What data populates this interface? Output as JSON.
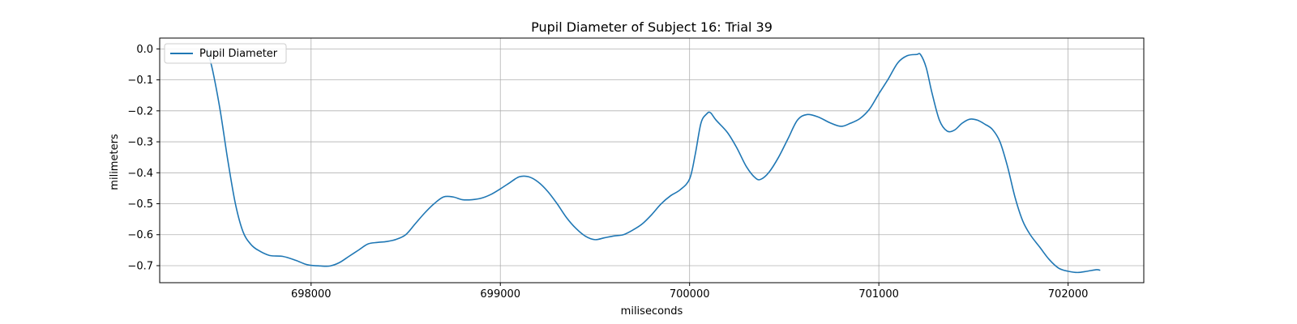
{
  "chart_data": {
    "type": "line",
    "title": "Pupil Diameter of Subject 16: Trial 39",
    "xlabel": "miliseconds",
    "ylabel": "milimeters",
    "xlim": [
      697200,
      702400
    ],
    "ylim": [
      -0.755,
      0.035
    ],
    "xticks": [
      698000,
      699000,
      700000,
      701000,
      702000
    ],
    "yticks": [
      0.0,
      -0.1,
      -0.2,
      -0.3,
      -0.4,
      -0.5,
      -0.6,
      -0.7
    ],
    "xtick_labels": [
      "698000",
      "699000",
      "700000",
      "701000",
      "702000"
    ],
    "ytick_labels": [
      "0.0",
      "−0.1",
      "−0.2",
      "−0.3",
      "−0.4",
      "−0.5",
      "−0.6",
      "−0.7"
    ],
    "grid": true,
    "legend": {
      "position": "upper-left",
      "entries": [
        "Pupil Diameter"
      ]
    },
    "colors": {
      "series": "#1f77b4",
      "grid": "#b0b0b0",
      "axes": "#000000"
    },
    "series": [
      {
        "name": "Pupil Diameter",
        "x": [
          697450,
          697480,
          697520,
          697560,
          697600,
          697640,
          697680,
          697720,
          697780,
          697850,
          697920,
          697980,
          698050,
          698100,
          698150,
          698200,
          698250,
          698300,
          698350,
          698400,
          698450,
          698500,
          698550,
          698600,
          698650,
          698700,
          698750,
          698800,
          698850,
          698900,
          698950,
          699000,
          699050,
          699100,
          699150,
          699200,
          699250,
          699300,
          699350,
          699400,
          699450,
          699500,
          699550,
          699600,
          699650,
          699700,
          699750,
          699800,
          699850,
          699900,
          699950,
          700000,
          700030,
          700060,
          700090,
          700110,
          700140,
          700200,
          700250,
          700300,
          700350,
          700380,
          700420,
          700470,
          700520,
          700570,
          700620,
          700680,
          700740,
          700800,
          700850,
          700900,
          700950,
          701000,
          701050,
          701100,
          701150,
          701200,
          701220,
          701250,
          701280,
          701320,
          701360,
          701400,
          701440,
          701480,
          701520,
          701560,
          701600,
          701640,
          701680,
          701720,
          701760,
          701800,
          701850,
          701900,
          701950,
          702000,
          702050,
          702100,
          702150,
          702170
        ],
        "y": [
          0.0,
          -0.07,
          -0.2,
          -0.36,
          -0.5,
          -0.59,
          -0.63,
          -0.65,
          -0.667,
          -0.67,
          -0.683,
          -0.697,
          -0.701,
          -0.701,
          -0.69,
          -0.67,
          -0.65,
          -0.63,
          -0.625,
          -0.622,
          -0.615,
          -0.6,
          -0.565,
          -0.53,
          -0.5,
          -0.478,
          -0.478,
          -0.487,
          -0.487,
          -0.482,
          -0.47,
          -0.452,
          -0.432,
          -0.413,
          -0.413,
          -0.43,
          -0.46,
          -0.5,
          -0.545,
          -0.58,
          -0.605,
          -0.616,
          -0.61,
          -0.604,
          -0.6,
          -0.585,
          -0.565,
          -0.535,
          -0.5,
          -0.474,
          -0.455,
          -0.42,
          -0.34,
          -0.24,
          -0.21,
          -0.206,
          -0.23,
          -0.27,
          -0.32,
          -0.38,
          -0.418,
          -0.42,
          -0.398,
          -0.35,
          -0.29,
          -0.23,
          -0.212,
          -0.22,
          -0.238,
          -0.25,
          -0.24,
          -0.225,
          -0.195,
          -0.145,
          -0.097,
          -0.045,
          -0.022,
          -0.018,
          -0.018,
          -0.06,
          -0.14,
          -0.23,
          -0.265,
          -0.262,
          -0.24,
          -0.227,
          -0.23,
          -0.243,
          -0.26,
          -0.3,
          -0.38,
          -0.48,
          -0.555,
          -0.6,
          -0.64,
          -0.68,
          -0.708,
          -0.718,
          -0.722,
          -0.718,
          -0.713,
          -0.715
        ]
      }
    ]
  }
}
